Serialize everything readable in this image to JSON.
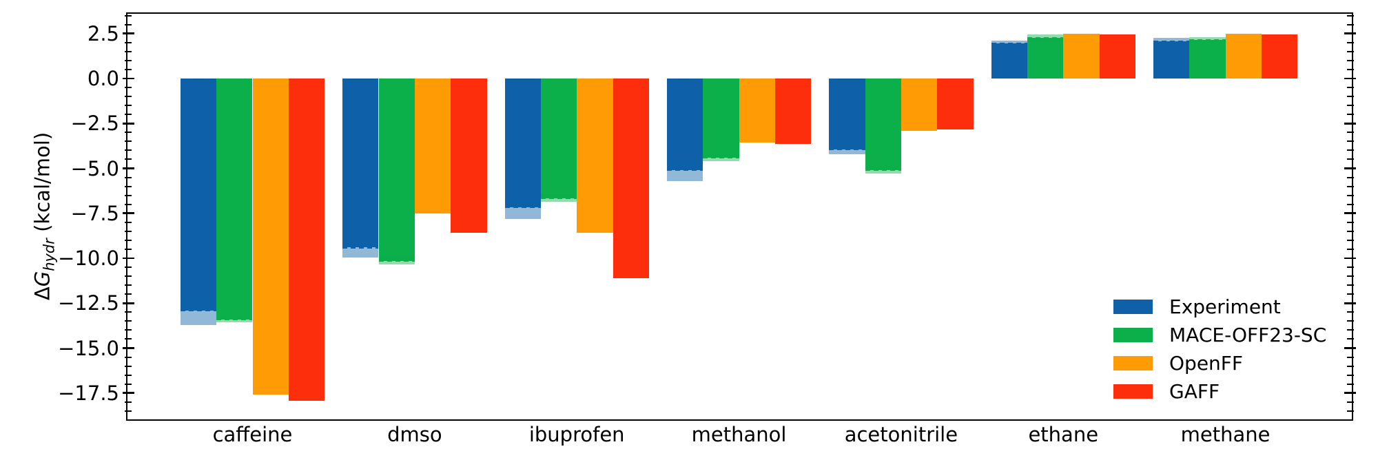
{
  "figure": {
    "background": "#ffffff",
    "frame_color": "#000000",
    "text_color": "#000000"
  },
  "axes": {
    "y_title_delta": "Δ",
    "y_title_symbol": "G",
    "y_title_subscript": "hydr",
    "y_title_units": " (kcal/mol)",
    "y_tick_labels": [
      "2.5",
      "0.0",
      "−2.5",
      "−5.0",
      "−7.5",
      "−10.0",
      "−12.5",
      "−15.0",
      "−17.5"
    ]
  },
  "chart_data": {
    "type": "bar",
    "title": "",
    "xlabel": "",
    "ylabel": "ΔG_hydr (kcal/mol)",
    "ylim": [
      -18.9,
      3.6
    ],
    "y_major_ticks": [
      2.5,
      0.0,
      -2.5,
      -5.0,
      -7.5,
      -10.0,
      -12.5,
      -15.0,
      -17.5
    ],
    "y_minor_tick_step": 0.5,
    "grid": false,
    "legend_position": "lower right",
    "categories": [
      "caffeine",
      "dmso",
      "ibuprofen",
      "methanol",
      "acetonitrile",
      "ethane",
      "methane"
    ],
    "series": [
      {
        "name": "Experiment",
        "color": "#0e61a8",
        "values": [
          -12.9,
          -9.4,
          -7.15,
          -5.1,
          -3.95,
          1.95,
          2.05
        ],
        "errors": [
          0.8,
          0.55,
          0.65,
          0.6,
          0.25,
          0.17,
          0.22
        ]
      },
      {
        "name": "MACE-OFF23-SC",
        "color": "#0cb04a",
        "values": [
          -13.4,
          -10.15,
          -6.65,
          -4.4,
          -5.1,
          2.25,
          2.15
        ],
        "errors": [
          0.15,
          0.2,
          0.2,
          0.2,
          0.2,
          0.2,
          0.15
        ]
      },
      {
        "name": "OpenFF",
        "color": "#ff9b05",
        "values": [
          -17.6,
          -7.5,
          -8.6,
          -3.55,
          -2.9,
          2.5,
          2.5
        ],
        "errors": [
          0,
          0,
          0,
          0,
          0,
          0,
          0
        ]
      },
      {
        "name": "GAFF",
        "color": "#fd2e0c",
        "values": [
          -17.95,
          -8.6,
          -11.1,
          -3.65,
          -2.85,
          2.45,
          2.45
        ],
        "errors": [
          0,
          0,
          0,
          0,
          0,
          0,
          0
        ]
      }
    ]
  }
}
